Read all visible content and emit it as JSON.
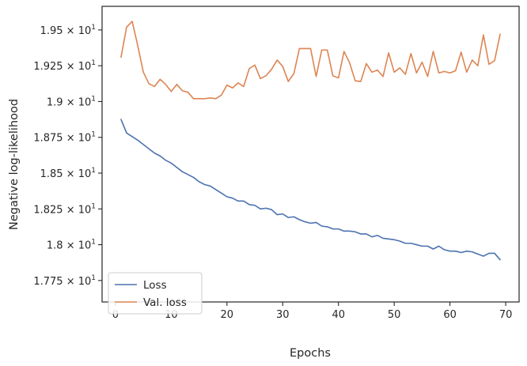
{
  "chart_data": {
    "type": "line",
    "xlabel": "Epochs",
    "ylabel": "Negative log-likelihood",
    "xlim": [
      -2.4,
      72.4
    ],
    "ylim": [
      17.6,
      19.665
    ],
    "xticks": [
      0,
      10,
      20,
      30,
      40,
      50,
      60,
      70
    ],
    "xtick_labels": [
      "0",
      "10",
      "20",
      "30",
      "40",
      "50",
      "60",
      "70"
    ],
    "yticks": [
      17.75,
      18.0,
      18.25,
      18.5,
      18.75,
      19.0,
      19.25,
      19.5
    ],
    "ytick_labels": [
      {
        "mantissa": "1.775",
        "exp": "1"
      },
      {
        "mantissa": "1.8",
        "exp": "1"
      },
      {
        "mantissa": "1.825",
        "exp": "1"
      },
      {
        "mantissa": "1.85",
        "exp": "1"
      },
      {
        "mantissa": "1.875",
        "exp": "1"
      },
      {
        "mantissa": "1.9",
        "exp": "1"
      },
      {
        "mantissa": "1.925",
        "exp": "1"
      },
      {
        "mantissa": "1.95",
        "exp": "1"
      }
    ],
    "legend_position": "lower-left",
    "grid": false,
    "x": [
      1,
      2,
      3,
      4,
      5,
      6,
      7,
      8,
      9,
      10,
      11,
      12,
      13,
      14,
      15,
      16,
      17,
      18,
      19,
      20,
      21,
      22,
      23,
      24,
      25,
      26,
      27,
      28,
      29,
      30,
      31,
      32,
      33,
      34,
      35,
      36,
      37,
      38,
      39,
      40,
      41,
      42,
      43,
      44,
      45,
      46,
      47,
      48,
      49,
      50,
      51,
      52,
      53,
      54,
      55,
      56,
      57,
      58,
      59,
      60,
      61,
      62,
      63,
      64,
      65,
      66,
      67,
      68,
      69
    ],
    "series": [
      {
        "name": "Loss",
        "color": "#4c72b0",
        "values": [
          18.875,
          18.78,
          18.755,
          18.73,
          18.7,
          18.67,
          18.64,
          18.62,
          18.59,
          18.57,
          18.54,
          18.51,
          18.49,
          18.47,
          18.44,
          18.42,
          18.41,
          18.385,
          18.36,
          18.335,
          18.325,
          18.305,
          18.305,
          18.28,
          18.275,
          18.25,
          18.255,
          18.245,
          18.21,
          18.215,
          18.19,
          18.195,
          18.175,
          18.16,
          18.15,
          18.155,
          18.13,
          18.125,
          18.11,
          18.11,
          18.095,
          18.095,
          18.09,
          18.075,
          18.075,
          18.055,
          18.065,
          18.045,
          18.04,
          18.035,
          18.025,
          18.01,
          18.01,
          18.0,
          17.99,
          17.99,
          17.97,
          17.99,
          17.965,
          17.955,
          17.955,
          17.945,
          17.955,
          17.95,
          17.935,
          17.92,
          17.94,
          17.94,
          17.895
        ]
      },
      {
        "name": "Val. loss",
        "color": "#dd8452",
        "values": [
          19.31,
          19.52,
          19.56,
          19.39,
          19.205,
          19.125,
          19.105,
          19.155,
          19.12,
          19.07,
          19.12,
          19.075,
          19.065,
          19.02,
          19.02,
          19.02,
          19.025,
          19.02,
          19.045,
          19.115,
          19.095,
          19.13,
          19.105,
          19.23,
          19.255,
          19.16,
          19.18,
          19.225,
          19.29,
          19.245,
          19.14,
          19.195,
          19.37,
          19.37,
          19.37,
          19.175,
          19.36,
          19.36,
          19.18,
          19.165,
          19.35,
          19.27,
          19.145,
          19.14,
          19.265,
          19.205,
          19.22,
          19.175,
          19.34,
          19.205,
          19.235,
          19.19,
          19.335,
          19.2,
          19.275,
          19.175,
          19.35,
          19.2,
          19.21,
          19.2,
          19.215,
          19.345,
          19.205,
          19.29,
          19.25,
          19.465,
          19.26,
          19.285,
          19.47
        ]
      }
    ]
  }
}
